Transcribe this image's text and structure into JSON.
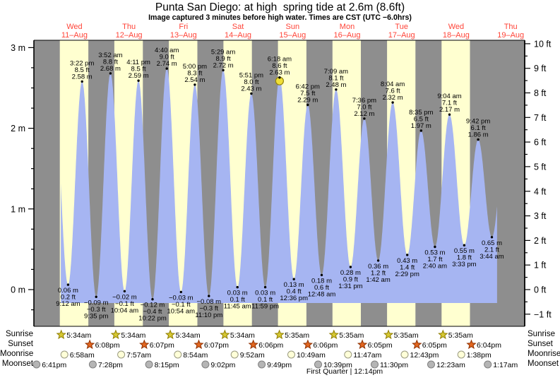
{
  "title": "Punta San Diego: at high  spring tide at 2.6m (8.6ft)",
  "subtitle": "Image captured 3 minutes before high water. Times are CST (UTC −6.0hrs)",
  "colors": {
    "night_band": "#8e8e8e",
    "day_band": "#ffffd0",
    "tide_fill": "#a6b5f2",
    "day_label": "#ff4438",
    "annotation_text": "#000000",
    "current_marker_fill": "#f0df38",
    "current_marker_stroke": "#95840a",
    "sunrise_icon_fill": "#d6c832",
    "sunrise_icon_stroke": "#8f7d00",
    "sunset_icon_fill": "#e2661f",
    "sunset_icon_stroke": "#8f3000",
    "moonrise_icon_fill": "#ffffd8",
    "moonrise_icon_stroke": "#999980",
    "moonset_icon_fill": "#b5b5b5",
    "moonset_icon_stroke": "#808080"
  },
  "chart_data": {
    "type": "area",
    "title": "Punta San Diego: at high  spring tide at 2.6m (8.6ft)",
    "time_axis_note": "t = hours since Wed 11-Aug 00:00, CST",
    "clip": [
      6.0,
      198.0
    ],
    "ylim_m": [
      -0.45,
      3.1
    ],
    "ylim_ft": [
      -1.5,
      10.2
    ],
    "x_axis_days": [
      {
        "weekday": "Wed",
        "date": "11–Aug",
        "noon_t": 12
      },
      {
        "weekday": "Thu",
        "date": "12–Aug",
        "noon_t": 36
      },
      {
        "weekday": "Fri",
        "date": "13–Aug",
        "noon_t": 60
      },
      {
        "weekday": "Sat",
        "date": "14–Aug",
        "noon_t": 84
      },
      {
        "weekday": "Sun",
        "date": "15–Aug",
        "noon_t": 108
      },
      {
        "weekday": "Mon",
        "date": "16–Aug",
        "noon_t": 132
      },
      {
        "weekday": "Tue",
        "date": "17–Aug",
        "noon_t": 156
      },
      {
        "weekday": "Wed",
        "date": "18–Aug",
        "noon_t": 180
      },
      {
        "weekday": "Thu",
        "date": "19–Aug",
        "noon_t": 204
      }
    ],
    "y_axis_left": {
      "unit": "m",
      "ticks": [
        {
          "v": 3,
          "label": "3 m"
        },
        {
          "v": 2,
          "label": "2 m"
        },
        {
          "v": 1,
          "label": "1 m"
        },
        {
          "v": 0,
          "label": "0 m"
        }
      ]
    },
    "y_axis_right": {
      "unit": "ft",
      "ticks": [
        {
          "v": 10,
          "label": "10 ft"
        },
        {
          "v": 9,
          "label": "9 ft"
        },
        {
          "v": 8,
          "label": "8 ft"
        },
        {
          "v": 7,
          "label": "7 ft"
        },
        {
          "v": 6,
          "label": "6 ft"
        },
        {
          "v": 5,
          "label": "5 ft"
        },
        {
          "v": 4,
          "label": "4 ft"
        },
        {
          "v": 3,
          "label": "3 ft"
        },
        {
          "v": 2,
          "label": "2 ft"
        },
        {
          "v": 1,
          "label": "1 ft"
        },
        {
          "v": 0,
          "label": "0 ft"
        },
        {
          "v": -1,
          "label": "−1 ft"
        }
      ]
    },
    "tide_events": [
      {
        "kind": "high",
        "t": 2.92,
        "m": 2.5,
        "virtual": true
      },
      {
        "kind": "low",
        "t": 9.2,
        "m": 0.06,
        "labels": [
          "0.06 m",
          "0.2 ft",
          "9:12 am"
        ]
      },
      {
        "kind": "high",
        "t": 15.37,
        "m": 2.58,
        "labels": [
          "3:22 pm",
          "8.5 ft",
          "2.58 m"
        ]
      },
      {
        "kind": "low",
        "t": 21.58,
        "m": -0.09,
        "labels": [
          "−0.09 m",
          "−0.3 ft",
          "9:35 pm"
        ]
      },
      {
        "kind": "high",
        "t": 27.87,
        "m": 2.68,
        "labels": [
          "3:52 am",
          "8.8 ft",
          "2.68 m"
        ]
      },
      {
        "kind": "low",
        "t": 34.07,
        "m": -0.02,
        "labels": [
          "−0.02 m",
          "−0.1 ft",
          "10:04 am"
        ]
      },
      {
        "kind": "high",
        "t": 40.18,
        "m": 2.59,
        "labels": [
          "4:11 pm",
          "8.5 ft",
          "2.59 m"
        ]
      },
      {
        "kind": "low",
        "t": 46.37,
        "m": -0.12,
        "labels": [
          "−0.12 m",
          "−0.4 ft",
          "10:22 pm"
        ]
      },
      {
        "kind": "high",
        "t": 52.67,
        "m": 2.74,
        "labels": [
          "4:40 am",
          "9.0 ft",
          "2.74 m"
        ]
      },
      {
        "kind": "low",
        "t": 58.9,
        "m": -0.03,
        "labels": [
          "−0.03 m",
          "−0.1 ft",
          "10:54 am"
        ]
      },
      {
        "kind": "high",
        "t": 65.0,
        "m": 2.54,
        "labels": [
          "5:00 pm",
          "8.3 ft",
          "2.54 m"
        ]
      },
      {
        "kind": "low",
        "t": 71.17,
        "m": -0.08,
        "labels": [
          "−0.08 m",
          "−0.3 ft",
          "11:10 pm"
        ]
      },
      {
        "kind": "high",
        "t": 77.48,
        "m": 2.72,
        "labels": [
          "5:29 am",
          "8.9 ft",
          "2.72 m"
        ]
      },
      {
        "kind": "low",
        "t": 83.75,
        "m": 0.03,
        "labels": [
          "0.03 m",
          "0.1 ft",
          "11:45 am"
        ]
      },
      {
        "kind": "high",
        "t": 89.85,
        "m": 2.43,
        "labels": [
          "5:51 pm",
          "8.0 ft",
          "2.43 m"
        ]
      },
      {
        "kind": "low",
        "t": 95.98,
        "m": 0.03,
        "labels": [
          "0.03 m",
          "0.1 ft",
          "11:59 pm"
        ]
      },
      {
        "kind": "high",
        "t": 102.3,
        "m": 2.63,
        "labels": [
          "6:18 am",
          "8.6 ft",
          "2.63 m"
        ],
        "current": true
      },
      {
        "kind": "low",
        "t": 108.6,
        "m": 0.13,
        "labels": [
          "0.13 m",
          "0.4 ft",
          "12:36 pm"
        ]
      },
      {
        "kind": "high",
        "t": 114.7,
        "m": 2.29,
        "labels": [
          "6:42 pm",
          "7.5 ft",
          "2.29 m"
        ]
      },
      {
        "kind": "low",
        "t": 120.8,
        "m": 0.18,
        "labels": [
          "0.18 m",
          "0.6 ft",
          "12:48 am"
        ]
      },
      {
        "kind": "high",
        "t": 127.15,
        "m": 2.48,
        "labels": [
          "7:09 am",
          "8.1 ft",
          "2.48 m"
        ]
      },
      {
        "kind": "low",
        "t": 133.52,
        "m": 0.28,
        "labels": [
          "0.28 m",
          "0.9 ft",
          "1:31 pm"
        ]
      },
      {
        "kind": "high",
        "t": 139.6,
        "m": 2.12,
        "labels": [
          "7:36 pm",
          "7.0 ft",
          "2.12 m"
        ]
      },
      {
        "kind": "low",
        "t": 145.7,
        "m": 0.36,
        "labels": [
          "0.36 m",
          "1.2 ft",
          "1:42 am"
        ]
      },
      {
        "kind": "high",
        "t": 152.07,
        "m": 2.32,
        "labels": [
          "8:04 am",
          "7.6 ft",
          "2.32 m"
        ]
      },
      {
        "kind": "low",
        "t": 158.48,
        "m": 0.43,
        "labels": [
          "0.43 m",
          "1.4 ft",
          "2:29 pm"
        ]
      },
      {
        "kind": "high",
        "t": 164.58,
        "m": 1.97,
        "labels": [
          "8:35 pm",
          "6.5 ft",
          "1.97 m"
        ]
      },
      {
        "kind": "low",
        "t": 170.67,
        "m": 0.53,
        "labels": [
          "0.53 m",
          "1.7 ft",
          "2:40 am"
        ]
      },
      {
        "kind": "high",
        "t": 177.07,
        "m": 2.17,
        "labels": [
          "9:04 am",
          "7.1 ft",
          "2.17 m"
        ]
      },
      {
        "kind": "low",
        "t": 183.55,
        "m": 0.55,
        "labels": [
          "0.55 m",
          "1.8 ft",
          "3:33 pm"
        ]
      },
      {
        "kind": "high",
        "t": 189.7,
        "m": 1.86,
        "labels": [
          "9:42 pm",
          "6.1 ft",
          "1.86 m"
        ]
      },
      {
        "kind": "low",
        "t": 195.73,
        "m": 0.65,
        "labels": [
          "0.65 m",
          "2.1 ft",
          "3:44 am"
        ]
      },
      {
        "kind": "high",
        "t": 202.1,
        "m": 2.0,
        "virtual": true
      }
    ],
    "astro": {
      "rows": [
        {
          "label": "Sunrise",
          "icon": "sunrise-star",
          "entries": [
            {
              "time": "5:34am",
              "t": 5.57
            },
            {
              "time": "5:34am",
              "t": 29.57
            },
            {
              "time": "5:34am",
              "t": 53.57
            },
            {
              "time": "5:34am",
              "t": 77.57
            },
            {
              "time": "5:35am",
              "t": 101.58
            },
            {
              "time": "5:35am",
              "t": 125.58
            },
            {
              "time": "5:35am",
              "t": 149.58
            },
            {
              "time": "5:35am",
              "t": 173.58
            }
          ]
        },
        {
          "label": "Sunset",
          "icon": "sunset-star",
          "entries": [
            {
              "time": "6:08pm",
              "t": 18.13
            },
            {
              "time": "6:07pm",
              "t": 42.12
            },
            {
              "time": "6:07pm",
              "t": 66.12
            },
            {
              "time": "6:06pm",
              "t": 90.1
            },
            {
              "time": "6:06pm",
              "t": 114.1
            },
            {
              "time": "6:05pm",
              "t": 138.08
            },
            {
              "time": "6:05pm",
              "t": 162.08
            },
            {
              "time": "6:04pm",
              "t": 186.07
            }
          ]
        },
        {
          "label": "Moonrise",
          "icon": "moonrise-circle",
          "entries": [
            {
              "time": "6:58am",
              "t": 6.97
            },
            {
              "time": "7:57am",
              "t": 31.95
            },
            {
              "time": "8:54am",
              "t": 56.9
            },
            {
              "time": "9:52am",
              "t": 81.87
            },
            {
              "time": "10:49am",
              "t": 106.82
            },
            {
              "time": "11:47am",
              "t": 131.78
            },
            {
              "time": "12:43pm",
              "t": 156.72
            },
            {
              "time": "1:38pm",
              "t": 181.63
            }
          ]
        },
        {
          "label": "Moonset",
          "icon": "moonset-circle",
          "entries": [
            {
              "time": "6:41pm",
              "t": -5.32
            },
            {
              "time": "7:28pm",
              "t": 19.47
            },
            {
              "time": "8:15pm",
              "t": 44.25
            },
            {
              "time": "9:02pm",
              "t": 69.03
            },
            {
              "time": "9:49pm",
              "t": 93.82
            },
            {
              "time": "10:39pm",
              "t": 118.65
            },
            {
              "time": "11:30pm",
              "t": 143.5
            },
            {
              "time": "12:23am",
              "t": 168.38
            },
            {
              "time": "1:17am",
              "t": 193.28
            }
          ]
        }
      ]
    },
    "moon_phase_note": "First Quarter | 12:14pm"
  }
}
